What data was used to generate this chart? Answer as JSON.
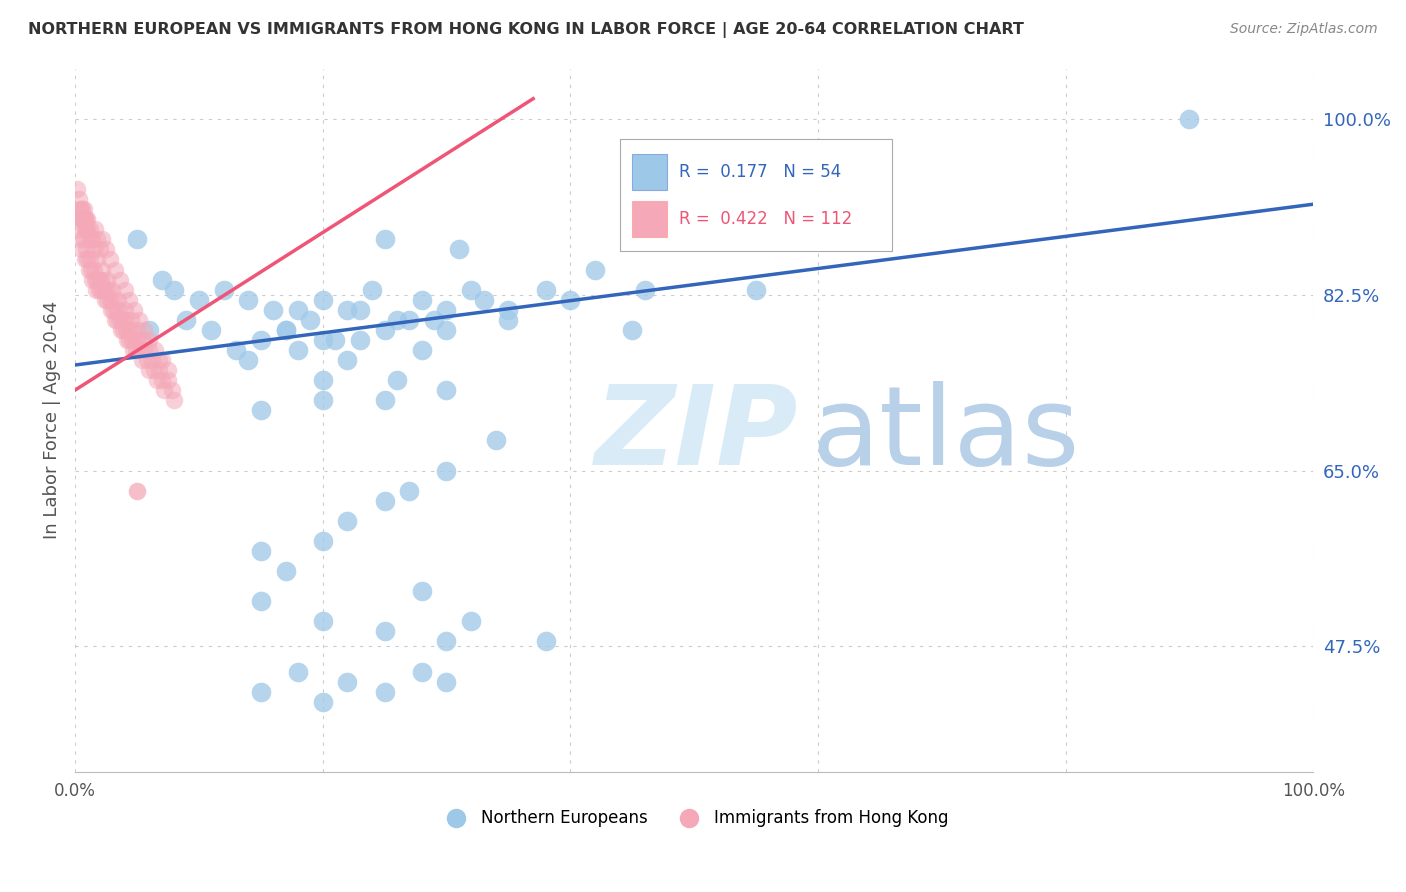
{
  "title": "NORTHERN EUROPEAN VS IMMIGRANTS FROM HONG KONG IN LABOR FORCE | AGE 20-64 CORRELATION CHART",
  "source": "Source: ZipAtlas.com",
  "ylabel": "In Labor Force | Age 20-64",
  "xlim": [
    0.0,
    1.0
  ],
  "ylim": [
    0.35,
    1.05
  ],
  "yticks": [
    0.475,
    0.65,
    0.825,
    1.0
  ],
  "ytick_labels": [
    "47.5%",
    "65.0%",
    "82.5%",
    "100.0%"
  ],
  "xticks": [
    0.0,
    0.2,
    0.4,
    0.6,
    0.8,
    1.0
  ],
  "xtick_labels": [
    "0.0%",
    "",
    "",
    "",
    "",
    "100.0%"
  ],
  "blue_R": 0.177,
  "blue_N": 54,
  "pink_R": 0.422,
  "pink_N": 112,
  "blue_color": "#9EC8E8",
  "pink_color": "#F4A8B8",
  "blue_line_color": "#3366BB",
  "pink_line_color": "#EE5577",
  "legend_label_blue": "Northern Europeans",
  "legend_label_pink": "Immigrants from Hong Kong",
  "background_color": "#FFFFFF",
  "blue_scatter": {
    "x": [
      0.05,
      0.25,
      0.31,
      0.07,
      0.08,
      0.1,
      0.12,
      0.14,
      0.16,
      0.18,
      0.06,
      0.09,
      0.11,
      0.13,
      0.15,
      0.17,
      0.19,
      0.21,
      0.23,
      0.2,
      0.22,
      0.24,
      0.26,
      0.28,
      0.3,
      0.32,
      0.27,
      0.29,
      0.33,
      0.35,
      0.38,
      0.42,
      0.46,
      0.55,
      0.9,
      0.2,
      0.17,
      0.23,
      0.14,
      0.25,
      0.18,
      0.22,
      0.28,
      0.3,
      0.2,
      0.26,
      0.35,
      0.4,
      0.3,
      0.25,
      0.2,
      0.15,
      0.34,
      0.45
    ],
    "y": [
      0.88,
      0.88,
      0.87,
      0.84,
      0.83,
      0.82,
      0.83,
      0.82,
      0.81,
      0.81,
      0.79,
      0.8,
      0.79,
      0.77,
      0.78,
      0.79,
      0.8,
      0.78,
      0.81,
      0.82,
      0.81,
      0.83,
      0.8,
      0.82,
      0.81,
      0.83,
      0.8,
      0.8,
      0.82,
      0.81,
      0.83,
      0.85,
      0.83,
      0.83,
      1.0,
      0.78,
      0.79,
      0.78,
      0.76,
      0.79,
      0.77,
      0.76,
      0.77,
      0.79,
      0.74,
      0.74,
      0.8,
      0.82,
      0.73,
      0.72,
      0.72,
      0.71,
      0.68,
      0.79
    ]
  },
  "pink_scatter": {
    "x": [
      0.005,
      0.006,
      0.007,
      0.008,
      0.009,
      0.01,
      0.011,
      0.012,
      0.013,
      0.014,
      0.015,
      0.016,
      0.017,
      0.018,
      0.019,
      0.02,
      0.021,
      0.022,
      0.023,
      0.024,
      0.025,
      0.026,
      0.027,
      0.028,
      0.029,
      0.03,
      0.031,
      0.032,
      0.033,
      0.034,
      0.035,
      0.036,
      0.037,
      0.038,
      0.039,
      0.04,
      0.041,
      0.042,
      0.043,
      0.044,
      0.045,
      0.046,
      0.047,
      0.048,
      0.049,
      0.05,
      0.052,
      0.054,
      0.056,
      0.058,
      0.06,
      0.062,
      0.064,
      0.066,
      0.068,
      0.07,
      0.072,
      0.075,
      0.078,
      0.08,
      0.003,
      0.004,
      0.005,
      0.006,
      0.007,
      0.008,
      0.009,
      0.01,
      0.012,
      0.014,
      0.016,
      0.018,
      0.02,
      0.022,
      0.025,
      0.028,
      0.032,
      0.036,
      0.04,
      0.044,
      0.048,
      0.052,
      0.056,
      0.06,
      0.065,
      0.07,
      0.002,
      0.003,
      0.004,
      0.005,
      0.006,
      0.007,
      0.008,
      0.009,
      0.01,
      0.012,
      0.015,
      0.018,
      0.022,
      0.026,
      0.03,
      0.035,
      0.04,
      0.045,
      0.05,
      0.055,
      0.06,
      0.068,
      0.075
    ],
    "y": [
      0.88,
      0.87,
      0.88,
      0.86,
      0.87,
      0.86,
      0.85,
      0.86,
      0.85,
      0.84,
      0.85,
      0.84,
      0.83,
      0.84,
      0.83,
      0.84,
      0.83,
      0.84,
      0.83,
      0.82,
      0.83,
      0.82,
      0.83,
      0.82,
      0.81,
      0.82,
      0.81,
      0.8,
      0.81,
      0.8,
      0.81,
      0.8,
      0.79,
      0.8,
      0.79,
      0.8,
      0.79,
      0.78,
      0.79,
      0.78,
      0.79,
      0.78,
      0.77,
      0.78,
      0.77,
      0.78,
      0.77,
      0.76,
      0.77,
      0.76,
      0.75,
      0.76,
      0.75,
      0.74,
      0.75,
      0.74,
      0.73,
      0.74,
      0.73,
      0.72,
      0.89,
      0.9,
      0.91,
      0.9,
      0.91,
      0.9,
      0.89,
      0.9,
      0.89,
      0.88,
      0.89,
      0.88,
      0.87,
      0.88,
      0.87,
      0.86,
      0.85,
      0.84,
      0.83,
      0.82,
      0.81,
      0.8,
      0.79,
      0.78,
      0.77,
      0.76,
      0.93,
      0.92,
      0.91,
      0.9,
      0.91,
      0.9,
      0.89,
      0.9,
      0.89,
      0.88,
      0.87,
      0.86,
      0.85,
      0.84,
      0.83,
      0.82,
      0.81,
      0.8,
      0.79,
      0.78,
      0.77,
      0.76,
      0.75
    ]
  },
  "blue_line": {
    "x0": 0.0,
    "x1": 1.0,
    "y0": 0.755,
    "y1": 0.915
  },
  "pink_line": {
    "x0": 0.0,
    "x1": 0.37,
    "y0": 0.73,
    "y1": 1.02
  },
  "blue_low_scatter": {
    "x": [
      0.15,
      0.17,
      0.2,
      0.22,
      0.25,
      0.27,
      0.3,
      0.15,
      0.2,
      0.25,
      0.3,
      0.28,
      0.32,
      0.38
    ],
    "y": [
      0.57,
      0.55,
      0.58,
      0.6,
      0.62,
      0.63,
      0.65,
      0.52,
      0.5,
      0.49,
      0.48,
      0.53,
      0.5,
      0.48
    ]
  },
  "blue_very_low_scatter": {
    "x": [
      0.15,
      0.18,
      0.2,
      0.22,
      0.25,
      0.28,
      0.3
    ],
    "y": [
      0.43,
      0.45,
      0.42,
      0.44,
      0.43,
      0.45,
      0.44
    ]
  },
  "pink_low": {
    "x": [
      0.05
    ],
    "y": [
      0.63
    ]
  }
}
